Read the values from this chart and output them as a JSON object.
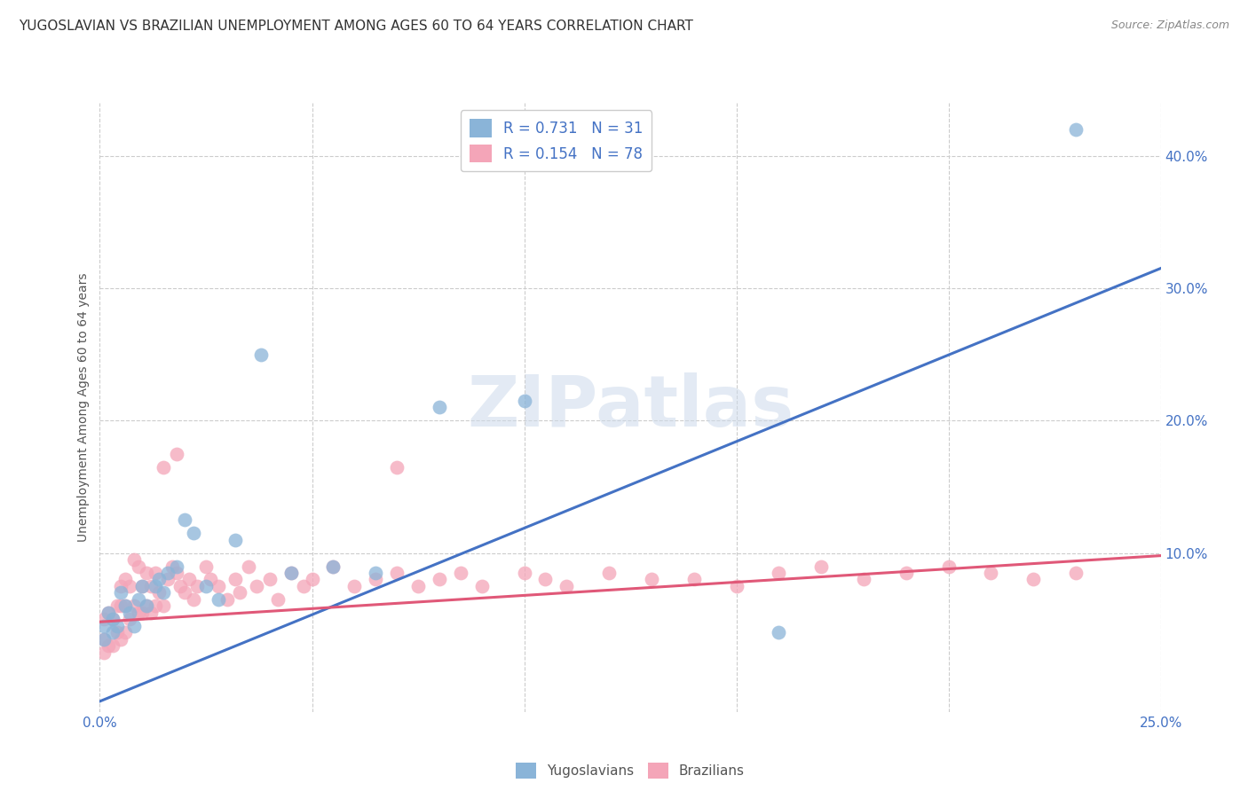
{
  "title": "YUGOSLAVIAN VS BRAZILIAN UNEMPLOYMENT AMONG AGES 60 TO 64 YEARS CORRELATION CHART",
  "source": "Source: ZipAtlas.com",
  "ylabel": "Unemployment Among Ages 60 to 64 years",
  "xlim": [
    0.0,
    0.25
  ],
  "ylim": [
    -0.02,
    0.44
  ],
  "xtick_positions": [
    0.0,
    0.05,
    0.1,
    0.15,
    0.2,
    0.25
  ],
  "xtick_labels": [
    "0.0%",
    "",
    "",
    "",
    "",
    "25.0%"
  ],
  "yticks_right": [
    0.1,
    0.2,
    0.3,
    0.4
  ],
  "ytick_labels_right": [
    "10.0%",
    "20.0%",
    "30.0%",
    "40.0%"
  ],
  "watermark": "ZIPatlas",
  "color_yugoslavian": "#8ab4d8",
  "color_brazilian": "#f4a5b8",
  "color_line_yugoslavian": "#4472c4",
  "color_line_brazilian": "#e05878",
  "title_fontsize": 11,
  "axis_label_fontsize": 10,
  "tick_fontsize": 11,
  "legend_fontsize": 12,
  "background_color": "#ffffff",
  "grid_color": "#cccccc",
  "yug_x": [
    0.001,
    0.001,
    0.002,
    0.003,
    0.003,
    0.004,
    0.005,
    0.006,
    0.007,
    0.008,
    0.009,
    0.01,
    0.011,
    0.013,
    0.014,
    0.015,
    0.016,
    0.018,
    0.02,
    0.022,
    0.025,
    0.028,
    0.032,
    0.038,
    0.045,
    0.055,
    0.065,
    0.08,
    0.1,
    0.16,
    0.23
  ],
  "yug_y": [
    0.045,
    0.035,
    0.055,
    0.05,
    0.04,
    0.045,
    0.07,
    0.06,
    0.055,
    0.045,
    0.065,
    0.075,
    0.06,
    0.075,
    0.08,
    0.07,
    0.085,
    0.09,
    0.125,
    0.115,
    0.075,
    0.065,
    0.11,
    0.25,
    0.085,
    0.09,
    0.085,
    0.21,
    0.215,
    0.04,
    0.42
  ],
  "bra_x": [
    0.001,
    0.001,
    0.001,
    0.002,
    0.002,
    0.003,
    0.003,
    0.004,
    0.004,
    0.005,
    0.005,
    0.005,
    0.006,
    0.006,
    0.006,
    0.007,
    0.007,
    0.008,
    0.008,
    0.009,
    0.009,
    0.01,
    0.01,
    0.011,
    0.011,
    0.012,
    0.012,
    0.013,
    0.013,
    0.014,
    0.015,
    0.015,
    0.016,
    0.017,
    0.018,
    0.019,
    0.02,
    0.021,
    0.022,
    0.023,
    0.025,
    0.026,
    0.028,
    0.03,
    0.032,
    0.033,
    0.035,
    0.037,
    0.04,
    0.042,
    0.045,
    0.048,
    0.05,
    0.055,
    0.06,
    0.065,
    0.07,
    0.075,
    0.08,
    0.085,
    0.09,
    0.1,
    0.105,
    0.11,
    0.12,
    0.13,
    0.14,
    0.15,
    0.16,
    0.17,
    0.18,
    0.19,
    0.2,
    0.21,
    0.22,
    0.23,
    0.018,
    0.07
  ],
  "bra_y": [
    0.05,
    0.035,
    0.025,
    0.055,
    0.03,
    0.05,
    0.03,
    0.06,
    0.04,
    0.075,
    0.06,
    0.035,
    0.08,
    0.06,
    0.04,
    0.075,
    0.05,
    0.095,
    0.06,
    0.09,
    0.055,
    0.075,
    0.055,
    0.085,
    0.06,
    0.075,
    0.055,
    0.085,
    0.06,
    0.07,
    0.165,
    0.06,
    0.08,
    0.09,
    0.085,
    0.075,
    0.07,
    0.08,
    0.065,
    0.075,
    0.09,
    0.08,
    0.075,
    0.065,
    0.08,
    0.07,
    0.09,
    0.075,
    0.08,
    0.065,
    0.085,
    0.075,
    0.08,
    0.09,
    0.075,
    0.08,
    0.085,
    0.075,
    0.08,
    0.085,
    0.075,
    0.085,
    0.08,
    0.075,
    0.085,
    0.08,
    0.08,
    0.075,
    0.085,
    0.09,
    0.08,
    0.085,
    0.09,
    0.085,
    0.08,
    0.085,
    0.175,
    0.165
  ],
  "yug_trend_x": [
    0.0,
    0.25
  ],
  "yug_trend_y": [
    -0.012,
    0.315
  ],
  "bra_trend_x": [
    0.0,
    0.25
  ],
  "bra_trend_y": [
    0.048,
    0.098
  ]
}
